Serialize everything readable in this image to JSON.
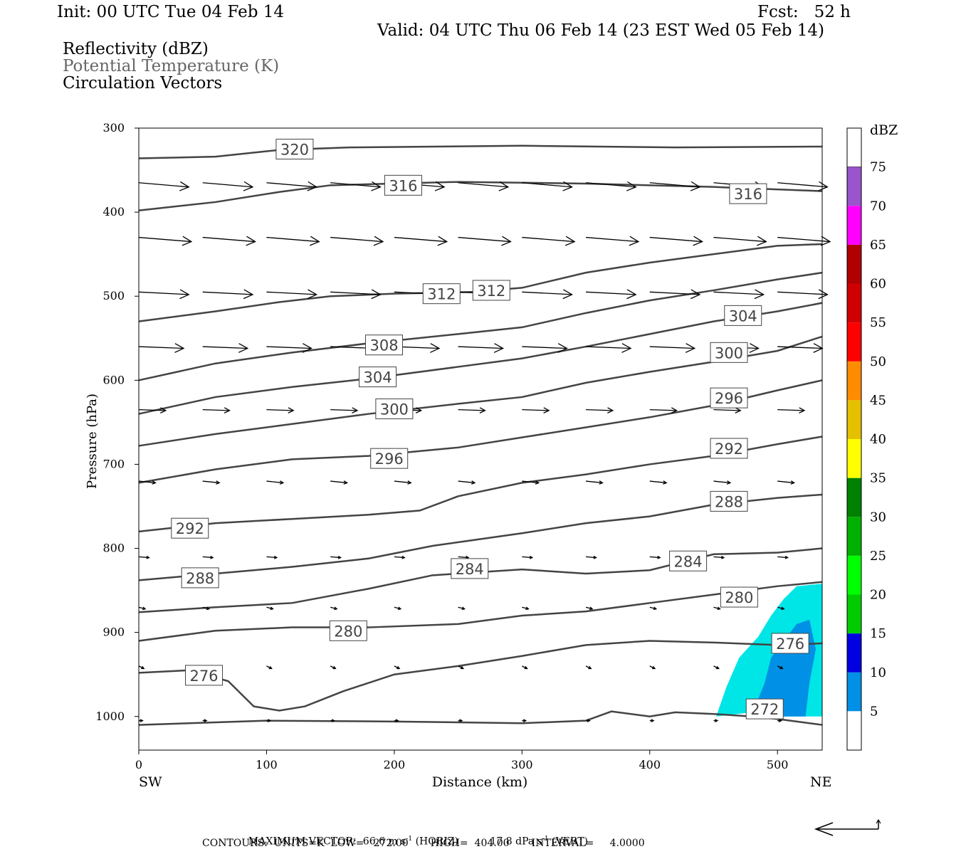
{
  "header": {
    "init": "Init: 00 UTC Tue 04 Feb 14",
    "fcst": "Fcst:   52 h",
    "valid": "Valid: 04 UTC Thu 06 Feb 14 (23 EST Wed 05 Feb 14)",
    "fields": [
      "Reflectivity (dBZ)",
      "Potential Temperature (K)",
      "Circulation Vectors"
    ]
  },
  "footer": {
    "max_vector_label": "MAXIMUM VECTOR:",
    "max_vector_horiz": "66.6 m s",
    "horiz_unit": "(HORIZ)",
    "max_vector_vert": "17.8 dPa s",
    "vert_unit": "(VERT)",
    "contours": "CONTOURS:  UNITS=K  LOW=   272.00       HIGH=  404.00       INTERVAL=     4.0000"
  },
  "chart_data": {
    "type": "contour",
    "xlabel": "Distance (km)",
    "ylabel": "Pressure (hPa)",
    "xlim": [
      0,
      535
    ],
    "ylim": [
      1040,
      300
    ],
    "x_ticks": [
      0,
      100,
      200,
      300,
      400,
      500
    ],
    "y_ticks": [
      300,
      400,
      500,
      600,
      700,
      800,
      900,
      1000
    ],
    "x_end_labels": {
      "left": "SW",
      "right": "NE"
    },
    "colorbar": {
      "title": "dBZ",
      "levels": [
        5,
        10,
        15,
        20,
        25,
        30,
        35,
        40,
        45,
        50,
        55,
        60,
        65,
        70,
        75
      ],
      "colors": [
        "#00e5e5",
        "#0090e5",
        "#0000e0",
        "#00cc00",
        "#00ff00",
        "#00b000",
        "#008000",
        "#ffff00",
        "#e5c000",
        "#ff8c00",
        "#ff0000",
        "#d00000",
        "#b00000",
        "#ff00ff",
        "#9955cc"
      ]
    },
    "theta_labels": [
      {
        "value": "320",
        "x": 122,
        "p": 325
      },
      {
        "value": "316",
        "x": 207,
        "p": 368
      },
      {
        "value": "316",
        "x": 477,
        "p": 378
      },
      {
        "value": "312",
        "x": 237,
        "p": 497
      },
      {
        "value": "312",
        "x": 276,
        "p": 493
      },
      {
        "value": "304",
        "x": 473,
        "p": 523
      },
      {
        "value": "300",
        "x": 462,
        "p": 567
      },
      {
        "value": "308",
        "x": 192,
        "p": 558
      },
      {
        "value": "304",
        "x": 187,
        "p": 596
      },
      {
        "value": "300",
        "x": 200,
        "p": 634
      },
      {
        "value": "296",
        "x": 462,
        "p": 621
      },
      {
        "value": "292",
        "x": 462,
        "p": 681
      },
      {
        "value": "296",
        "x": 196,
        "p": 693
      },
      {
        "value": "288",
        "x": 462,
        "p": 744
      },
      {
        "value": "292",
        "x": 40,
        "p": 776
      },
      {
        "value": "284",
        "x": 430,
        "p": 815
      },
      {
        "value": "284",
        "x": 259,
        "p": 824
      },
      {
        "value": "288",
        "x": 48,
        "p": 835
      },
      {
        "value": "280",
        "x": 470,
        "p": 858
      },
      {
        "value": "280",
        "x": 164,
        "p": 898
      },
      {
        "value": "276",
        "x": 510,
        "p": 913
      },
      {
        "value": "276",
        "x": 51,
        "p": 951
      },
      {
        "value": "272",
        "x": 490,
        "p": 991
      }
    ],
    "theta_contours": [
      {
        "theta": 320,
        "pts": [
          [
            0,
            336
          ],
          [
            60,
            334
          ],
          [
            110,
            326
          ],
          [
            165,
            323
          ],
          [
            300,
            321
          ],
          [
            420,
            323
          ],
          [
            535,
            322
          ]
        ]
      },
      {
        "theta": 316,
        "pts": [
          [
            0,
            398
          ],
          [
            60,
            388
          ],
          [
            110,
            376
          ],
          [
            150,
            368
          ],
          [
            250,
            364
          ],
          [
            350,
            366
          ],
          [
            450,
            370
          ],
          [
            535,
            375
          ]
        ]
      },
      {
        "theta": 312,
        "pts": [
          [
            0,
            530
          ],
          [
            60,
            518
          ],
          [
            110,
            507
          ],
          [
            150,
            500
          ],
          [
            200,
            497
          ],
          [
            260,
            495
          ],
          [
            300,
            490
          ],
          [
            350,
            472
          ],
          [
            400,
            460
          ],
          [
            450,
            450
          ],
          [
            500,
            440
          ],
          [
            535,
            438
          ]
        ]
      },
      {
        "theta": 308,
        "pts": [
          [
            0,
            600
          ],
          [
            60,
            580
          ],
          [
            120,
            567
          ],
          [
            180,
            556
          ],
          [
            250,
            545
          ],
          [
            300,
            537
          ],
          [
            350,
            520
          ],
          [
            400,
            505
          ],
          [
            450,
            493
          ],
          [
            500,
            480
          ],
          [
            535,
            472
          ]
        ]
      },
      {
        "theta": 304,
        "pts": [
          [
            0,
            640
          ],
          [
            60,
            620
          ],
          [
            120,
            608
          ],
          [
            180,
            598
          ],
          [
            250,
            584
          ],
          [
            300,
            574
          ],
          [
            350,
            560
          ],
          [
            400,
            545
          ],
          [
            450,
            530
          ],
          [
            500,
            518
          ],
          [
            535,
            508
          ]
        ]
      },
      {
        "theta": 300,
        "pts": [
          [
            0,
            678
          ],
          [
            60,
            664
          ],
          [
            120,
            652
          ],
          [
            180,
            640
          ],
          [
            250,
            628
          ],
          [
            300,
            620
          ],
          [
            350,
            603
          ],
          [
            400,
            590
          ],
          [
            450,
            578
          ],
          [
            500,
            565
          ],
          [
            535,
            548
          ]
        ]
      },
      {
        "theta": 296,
        "pts": [
          [
            0,
            722
          ],
          [
            60,
            706
          ],
          [
            120,
            694
          ],
          [
            180,
            690
          ],
          [
            250,
            680
          ],
          [
            300,
            668
          ],
          [
            350,
            656
          ],
          [
            400,
            644
          ],
          [
            450,
            630
          ],
          [
            500,
            612
          ],
          [
            535,
            600
          ]
        ]
      },
      {
        "theta": 292,
        "pts": [
          [
            0,
            780
          ],
          [
            60,
            770
          ],
          [
            120,
            765
          ],
          [
            180,
            760
          ],
          [
            220,
            755
          ],
          [
            250,
            738
          ],
          [
            300,
            722
          ],
          [
            350,
            712
          ],
          [
            400,
            700
          ],
          [
            450,
            690
          ],
          [
            500,
            676
          ],
          [
            535,
            667
          ]
        ]
      },
      {
        "theta": 288,
        "pts": [
          [
            0,
            838
          ],
          [
            60,
            830
          ],
          [
            120,
            822
          ],
          [
            180,
            812
          ],
          [
            230,
            797
          ],
          [
            300,
            782
          ],
          [
            350,
            770
          ],
          [
            400,
            762
          ],
          [
            450,
            748
          ],
          [
            500,
            740
          ],
          [
            535,
            736
          ]
        ]
      },
      {
        "theta": 284,
        "pts": [
          [
            0,
            876
          ],
          [
            60,
            870
          ],
          [
            120,
            865
          ],
          [
            180,
            848
          ],
          [
            230,
            832
          ],
          [
            300,
            825
          ],
          [
            350,
            830
          ],
          [
            400,
            826
          ],
          [
            450,
            807
          ],
          [
            500,
            805
          ],
          [
            535,
            800
          ]
        ]
      },
      {
        "theta": 280,
        "pts": [
          [
            0,
            910
          ],
          [
            60,
            898
          ],
          [
            120,
            894
          ],
          [
            180,
            894
          ],
          [
            250,
            890
          ],
          [
            300,
            880
          ],
          [
            350,
            875
          ],
          [
            400,
            865
          ],
          [
            450,
            855
          ],
          [
            500,
            845
          ],
          [
            535,
            840
          ]
        ]
      },
      {
        "theta": 276,
        "pts": [
          [
            0,
            948
          ],
          [
            40,
            945
          ],
          [
            70,
            958
          ],
          [
            90,
            988
          ],
          [
            110,
            993
          ],
          [
            130,
            988
          ],
          [
            160,
            970
          ],
          [
            200,
            950
          ],
          [
            250,
            940
          ],
          [
            300,
            928
          ],
          [
            350,
            915
          ],
          [
            400,
            910
          ],
          [
            450,
            912
          ],
          [
            500,
            915
          ],
          [
            535,
            913
          ]
        ]
      },
      {
        "theta": 272,
        "pts": [
          [
            0,
            1010
          ],
          [
            100,
            1005
          ],
          [
            200,
            1006
          ],
          [
            300,
            1008
          ],
          [
            350,
            1005
          ],
          [
            370,
            994
          ],
          [
            400,
            1000
          ],
          [
            420,
            995
          ],
          [
            450,
            997
          ],
          [
            480,
            1000
          ],
          [
            500,
            1003
          ],
          [
            535,
            1010
          ]
        ]
      }
    ],
    "vector_rows": [
      {
        "p": 365,
        "u": 0.78,
        "w": 0.1
      },
      {
        "p": 430,
        "u": 0.82,
        "w": 0.1
      },
      {
        "p": 495,
        "u": 0.78,
        "w": 0.06
      },
      {
        "p": 560,
        "u": 0.7,
        "w": 0.04
      },
      {
        "p": 635,
        "u": 0.42,
        "w": 0.02
      },
      {
        "p": 720,
        "u": 0.26,
        "w": 0.04
      },
      {
        "p": 810,
        "u": 0.16,
        "w": 0.02
      },
      {
        "p": 870,
        "u": 0.1,
        "w": 0.04
      },
      {
        "p": 940,
        "u": 0.08,
        "w": 0.06
      },
      {
        "p": 1005,
        "u": 0.06,
        "w": 0.0
      }
    ],
    "reflectivity": [
      {
        "dbz": 5,
        "polygon": [
          [
            452,
            1000
          ],
          [
            460,
            965
          ],
          [
            470,
            930
          ],
          [
            485,
            905
          ],
          [
            495,
            880
          ],
          [
            505,
            860
          ],
          [
            515,
            845
          ],
          [
            535,
            842
          ],
          [
            535,
            1000
          ],
          [
            505,
            1000
          ],
          [
            480,
            995
          ]
        ]
      },
      {
        "dbz": 10,
        "polygon": [
          [
            480,
            998
          ],
          [
            490,
            960
          ],
          [
            495,
            930
          ],
          [
            505,
            910
          ],
          [
            515,
            890
          ],
          [
            525,
            885
          ],
          [
            530,
            920
          ],
          [
            525,
            960
          ],
          [
            522,
            1000
          ],
          [
            500,
            1000
          ]
        ]
      }
    ]
  }
}
